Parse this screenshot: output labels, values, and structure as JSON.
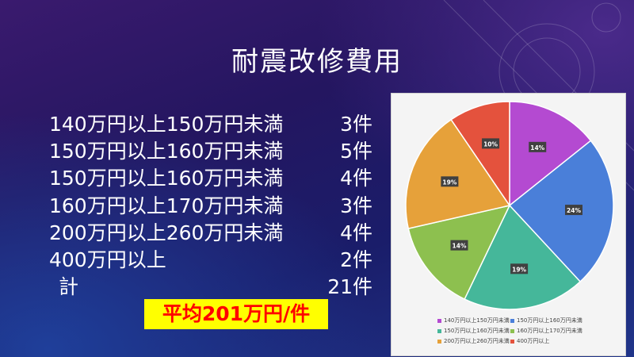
{
  "slide": {
    "title": "耐震改修費用",
    "rows": [
      {
        "range": "140万円以上150万円未満",
        "count": "3件"
      },
      {
        "range": "150万円以上160万円未満",
        "count": "5件"
      },
      {
        "range": "150万円以上160万円未満",
        "count": "4件"
      },
      {
        "range": "160万円以上170万円未満",
        "count": "3件"
      },
      {
        "range": "200万円以上260万円未満",
        "count": "4件"
      },
      {
        "range": "400万円以上",
        "count": "2件"
      }
    ],
    "total": {
      "label": "計",
      "count": "21件"
    },
    "average": "平均201万円/件"
  },
  "chart_data": {
    "type": "pie",
    "categories": [
      "140万円以上150万円未満",
      "150万円以上160万円未満",
      "150万円以上160万円未満",
      "160万円以上170万円未満",
      "200万円以上260万円未満",
      "400万円以上"
    ],
    "values": [
      3,
      5,
      4,
      3,
      4,
      2
    ],
    "labels": [
      "14%",
      "24%",
      "19%",
      "14%",
      "19%",
      "10%"
    ],
    "colors": [
      "#b44ad1",
      "#4a7fd9",
      "#45b79a",
      "#8dc04f",
      "#e6a13a",
      "#e4523d"
    ],
    "legend": "bottom"
  }
}
